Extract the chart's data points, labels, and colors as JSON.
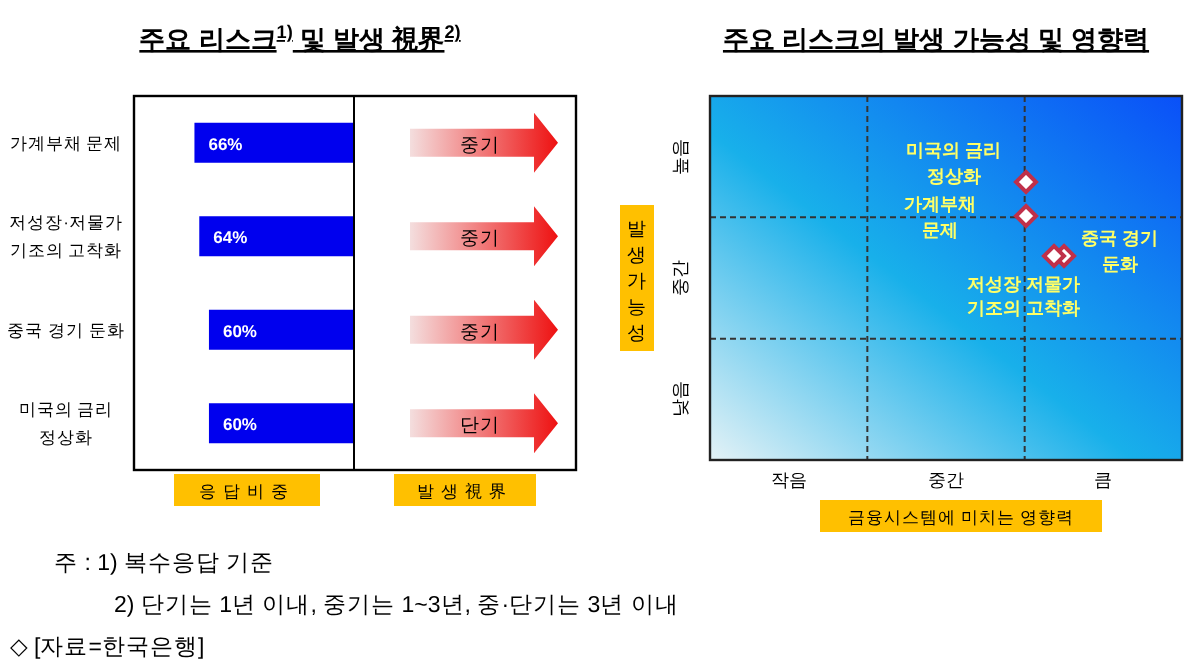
{
  "chart_data": [
    {
      "type": "bar",
      "orientation": "horizontal",
      "title": "주요 리스크$^{1)}$ 및 발생 視界$^{2)}$",
      "xlabel": "응답비중",
      "tick_labels": "y",
      "color": "#0000ee",
      "xlim": [
        91,
        0
      ],
      "categories": [
        "가계부채 문제",
        "저성장·저물가 기조의 고착화",
        "중국 경기 둔화",
        "미국의 금리 정상화"
      ],
      "values": [
        66,
        64,
        60,
        60
      ],
      "value_labels": [
        "66%",
        "64%",
        "60%",
        "60%"
      ],
      "annotations": [
        "중기",
        "중기",
        "중기",
        "단기",
        "발생視界",
        "주 : 1) 복수응답 기준",
        "2) 단기는 1년 이내, 중기는 1~3년, 중·단기는 3년 이내",
        "◇ [자료=한국은행]"
      ]
    },
    {
      "type": "other",
      "title": "주요 리스크의 발생 가능성 및 영향력",
      "xlabel": "금융시스템에 미치는 영향력",
      "ylabel": "발생가능성",
      "categories": [
        "작음",
        "중간",
        "큼"
      ],
      "y_categories": [
        "높음",
        "중간",
        "낮음"
      ],
      "annotations": [
        "미국의 금리 정상화",
        "가계부채 문제",
        "중국 경기 둔화",
        "저성장 저물가 기조의 고착화"
      ]
    }
  ]
}
